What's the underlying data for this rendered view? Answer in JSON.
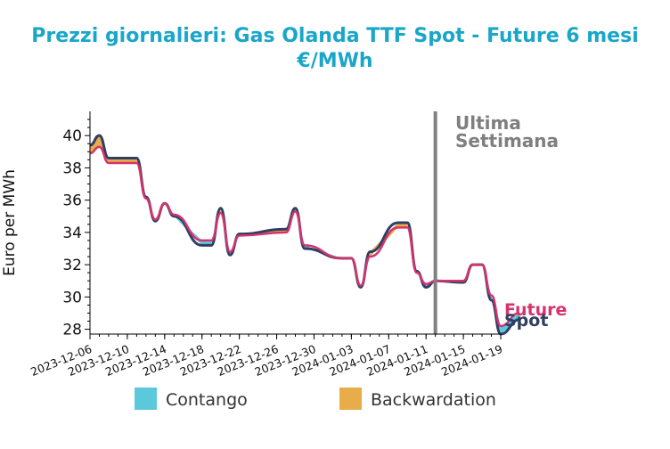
{
  "chart_data": {
    "type": "line",
    "title_lines": [
      "Prezzi giornalieri: Gas Olanda TTF Spot - Future 6 mesi",
      "€/MWh"
    ],
    "ylabel": "Euro per MWh",
    "xlabel": "",
    "ylim": [
      27.7,
      41.5
    ],
    "y_ticks": [
      28,
      30,
      32,
      34,
      36,
      38,
      40
    ],
    "x_start": "2023-12-06",
    "x_end": "2024-01-19",
    "x_ticks": [
      "2023-12-06",
      "2023-12-10",
      "2023-12-14",
      "2023-12-18",
      "2023-12-22",
      "2023-12-26",
      "2023-12-30",
      "2024-01-03",
      "2024-01-07",
      "2024-01-11",
      "2024-01-15",
      "2024-01-19"
    ],
    "series": [
      {
        "name": "Spot",
        "color": "#2e3f63",
        "x": [
          "2023-12-06",
          "2023-12-07",
          "2023-12-08",
          "2023-12-11",
          "2023-12-12",
          "2023-12-13",
          "2023-12-14",
          "2023-12-15",
          "2023-12-18",
          "2023-12-19",
          "2023-12-20",
          "2023-12-21",
          "2023-12-22",
          "2023-12-27",
          "2023-12-28",
          "2023-12-29",
          "2024-01-02",
          "2024-01-03",
          "2024-01-04",
          "2024-01-05",
          "2024-01-08",
          "2024-01-09",
          "2024-01-10",
          "2024-01-11",
          "2024-01-12",
          "2024-01-15",
          "2024-01-16",
          "2024-01-17",
          "2024-01-18",
          "2024-01-19"
        ],
        "values": [
          39.4,
          40.0,
          38.6,
          38.6,
          36.2,
          34.7,
          35.8,
          35.0,
          33.2,
          33.2,
          35.5,
          32.6,
          33.9,
          34.2,
          35.5,
          33.0,
          32.4,
          32.4,
          30.6,
          32.8,
          34.6,
          34.6,
          31.6,
          30.6,
          31.0,
          30.9,
          32.0,
          32.0,
          29.8,
          27.7
        ]
      },
      {
        "name": "Future",
        "color": "#d6336e",
        "x": [
          "2023-12-06",
          "2023-12-07",
          "2023-12-08",
          "2023-12-11",
          "2023-12-12",
          "2023-12-13",
          "2023-12-14",
          "2023-12-15",
          "2023-12-18",
          "2023-12-19",
          "2023-12-20",
          "2023-12-21",
          "2023-12-22",
          "2023-12-27",
          "2023-12-28",
          "2023-12-29",
          "2024-01-02",
          "2024-01-03",
          "2024-01-04",
          "2024-01-05",
          "2024-01-08",
          "2024-01-09",
          "2024-01-10",
          "2024-01-11",
          "2024-01-12",
          "2024-01-15",
          "2024-01-16",
          "2024-01-17",
          "2024-01-18",
          "2024-01-19"
        ],
        "values": [
          38.9,
          39.3,
          38.3,
          38.3,
          36.1,
          34.8,
          35.8,
          35.1,
          33.5,
          33.5,
          35.2,
          32.8,
          33.8,
          34.0,
          35.3,
          33.2,
          32.4,
          32.4,
          30.7,
          32.5,
          34.3,
          34.3,
          31.5,
          30.8,
          31.0,
          31.0,
          32.0,
          32.0,
          30.1,
          28.2
        ]
      }
    ],
    "extra_points": {
      "x": "2024-01-21",
      "spot": 28.6,
      "future": 29.0
    },
    "last_week_marker_x": "2024-01-12",
    "annotation": [
      "Ultima",
      "Settimana"
    ],
    "legend": [
      {
        "label": "Contango",
        "color": "#5bc8dc"
      },
      {
        "label": "Backwardation",
        "color": "#e8ac4a"
      }
    ],
    "legend_position": "bottom-center",
    "grid": false,
    "title_color": "#1aa6c8",
    "annotation_color": "#7f7f7f"
  }
}
